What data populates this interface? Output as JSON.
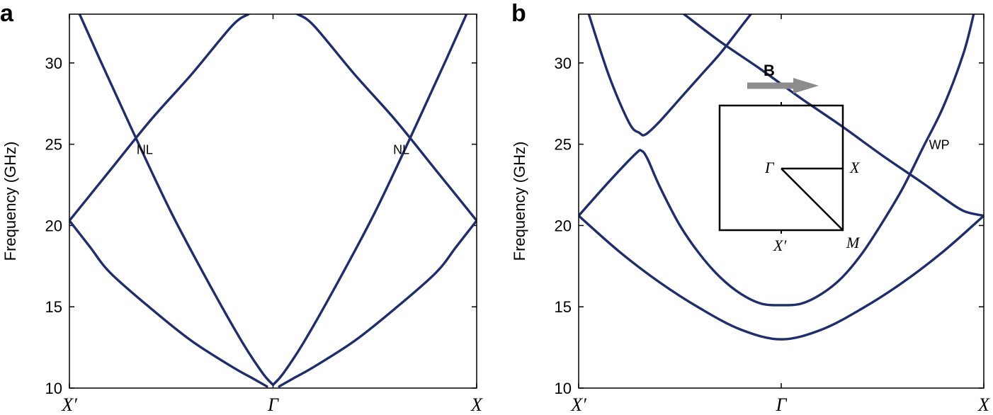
{
  "colors": {
    "band": "#1f2d6b",
    "arrow": "#8c8c8c"
  },
  "chart_data": [
    {
      "type": "line",
      "panel_label": "a",
      "ylabel": "Frequency (GHz)",
      "ylim": [
        10,
        33
      ],
      "yticks": [
        10,
        15,
        20,
        25,
        30
      ],
      "xlim": [
        -1,
        1
      ],
      "xticks": [
        {
          "pos": -1,
          "label": "X′"
        },
        {
          "pos": 0,
          "label": "Γ"
        },
        {
          "pos": 1,
          "label": "X"
        }
      ],
      "annotations": [
        {
          "text": "NL",
          "x": -0.63,
          "y": 24.7
        },
        {
          "text": "NL",
          "x": 0.63,
          "y": 24.7
        }
      ],
      "series": [
        {
          "x": [
            -1.0,
            -0.9,
            -0.8,
            -0.6,
            -0.4,
            -0.2,
            -0.1,
            -0.03
          ],
          "y": [
            20.3,
            18.7,
            17.1,
            14.9,
            12.9,
            11.3,
            10.6,
            10.1
          ]
        },
        {
          "x": [
            -0.95,
            -0.85,
            -0.7,
            -0.5,
            -0.3,
            -0.15,
            -0.05,
            0.0
          ],
          "y": [
            33.0,
            30.2,
            26.1,
            20.8,
            16.1,
            12.8,
            10.9,
            10.2
          ]
        },
        {
          "x": [
            -1.0,
            -0.8,
            -0.6,
            -0.4,
            -0.2,
            -0.12
          ],
          "y": [
            20.3,
            23.4,
            26.5,
            29.3,
            32.3,
            33.0
          ]
        },
        {
          "x": [
            0.03,
            0.1,
            0.2,
            0.4,
            0.6,
            0.8,
            0.9,
            1.0
          ],
          "y": [
            10.1,
            10.6,
            11.3,
            12.9,
            14.9,
            17.1,
            18.7,
            20.3
          ]
        },
        {
          "x": [
            0.0,
            0.05,
            0.15,
            0.3,
            0.5,
            0.7,
            0.85,
            0.95
          ],
          "y": [
            10.2,
            10.9,
            12.8,
            16.1,
            20.8,
            26.1,
            30.2,
            33.0
          ]
        },
        {
          "x": [
            0.12,
            0.2,
            0.4,
            0.6,
            0.8,
            1.0
          ],
          "y": [
            33.0,
            32.3,
            29.3,
            26.5,
            23.4,
            20.3
          ]
        }
      ]
    },
    {
      "type": "line",
      "panel_label": "b",
      "ylabel": "Frequency (GHz)",
      "ylim": [
        10,
        33
      ],
      "yticks": [
        10,
        15,
        20,
        25,
        30
      ],
      "xlim": [
        -1,
        1
      ],
      "xticks": [
        {
          "pos": -1,
          "label": "X′"
        },
        {
          "pos": 0,
          "label": "Γ"
        },
        {
          "pos": 1,
          "label": "X"
        }
      ],
      "annotations": [
        {
          "text": "WP",
          "x": 0.78,
          "y": 25.0
        }
      ],
      "inset": {
        "arrow_label": "B",
        "labels": [
          "Γ",
          "X",
          "X′",
          "M"
        ]
      },
      "series": [
        {
          "x": [
            -1.0,
            -0.8,
            -0.6,
            -0.4,
            -0.2,
            0.0,
            0.2,
            0.4,
            0.6,
            0.8,
            1.0
          ],
          "y": [
            20.6,
            18.4,
            16.5,
            14.9,
            13.6,
            13.0,
            13.6,
            14.9,
            16.5,
            18.4,
            20.6
          ]
        },
        {
          "x": [
            -1.0,
            -0.85,
            -0.72,
            -0.69,
            -0.66,
            -0.6,
            -0.5,
            -0.4,
            -0.3,
            -0.2,
            -0.1,
            0.0,
            0.1,
            0.2,
            0.3,
            0.4,
            0.5,
            0.6,
            0.7,
            0.8,
            0.9,
            0.95
          ],
          "y": [
            20.6,
            22.7,
            24.4,
            24.6,
            24.1,
            22.4,
            20.0,
            18.2,
            16.8,
            15.8,
            15.2,
            15.1,
            15.2,
            15.8,
            16.8,
            18.3,
            20.2,
            22.3,
            24.8,
            27.3,
            30.6,
            33.0
          ]
        },
        {
          "x": [
            -0.95,
            -0.85,
            -0.75,
            -0.7,
            -0.67,
            -0.6,
            -0.5,
            -0.4,
            -0.3,
            -0.2,
            -0.15
          ],
          "y": [
            33.0,
            29.2,
            26.3,
            25.7,
            25.6,
            26.4,
            27.8,
            29.2,
            30.6,
            32.2,
            33.0
          ]
        },
        {
          "x": [
            -0.48,
            -0.3,
            -0.1,
            0.1,
            0.3,
            0.5,
            0.7,
            0.8,
            0.9,
            1.0
          ],
          "y": [
            33.0,
            31.3,
            29.6,
            27.8,
            26.1,
            24.3,
            22.6,
            21.7,
            20.9,
            20.6
          ]
        }
      ]
    }
  ]
}
